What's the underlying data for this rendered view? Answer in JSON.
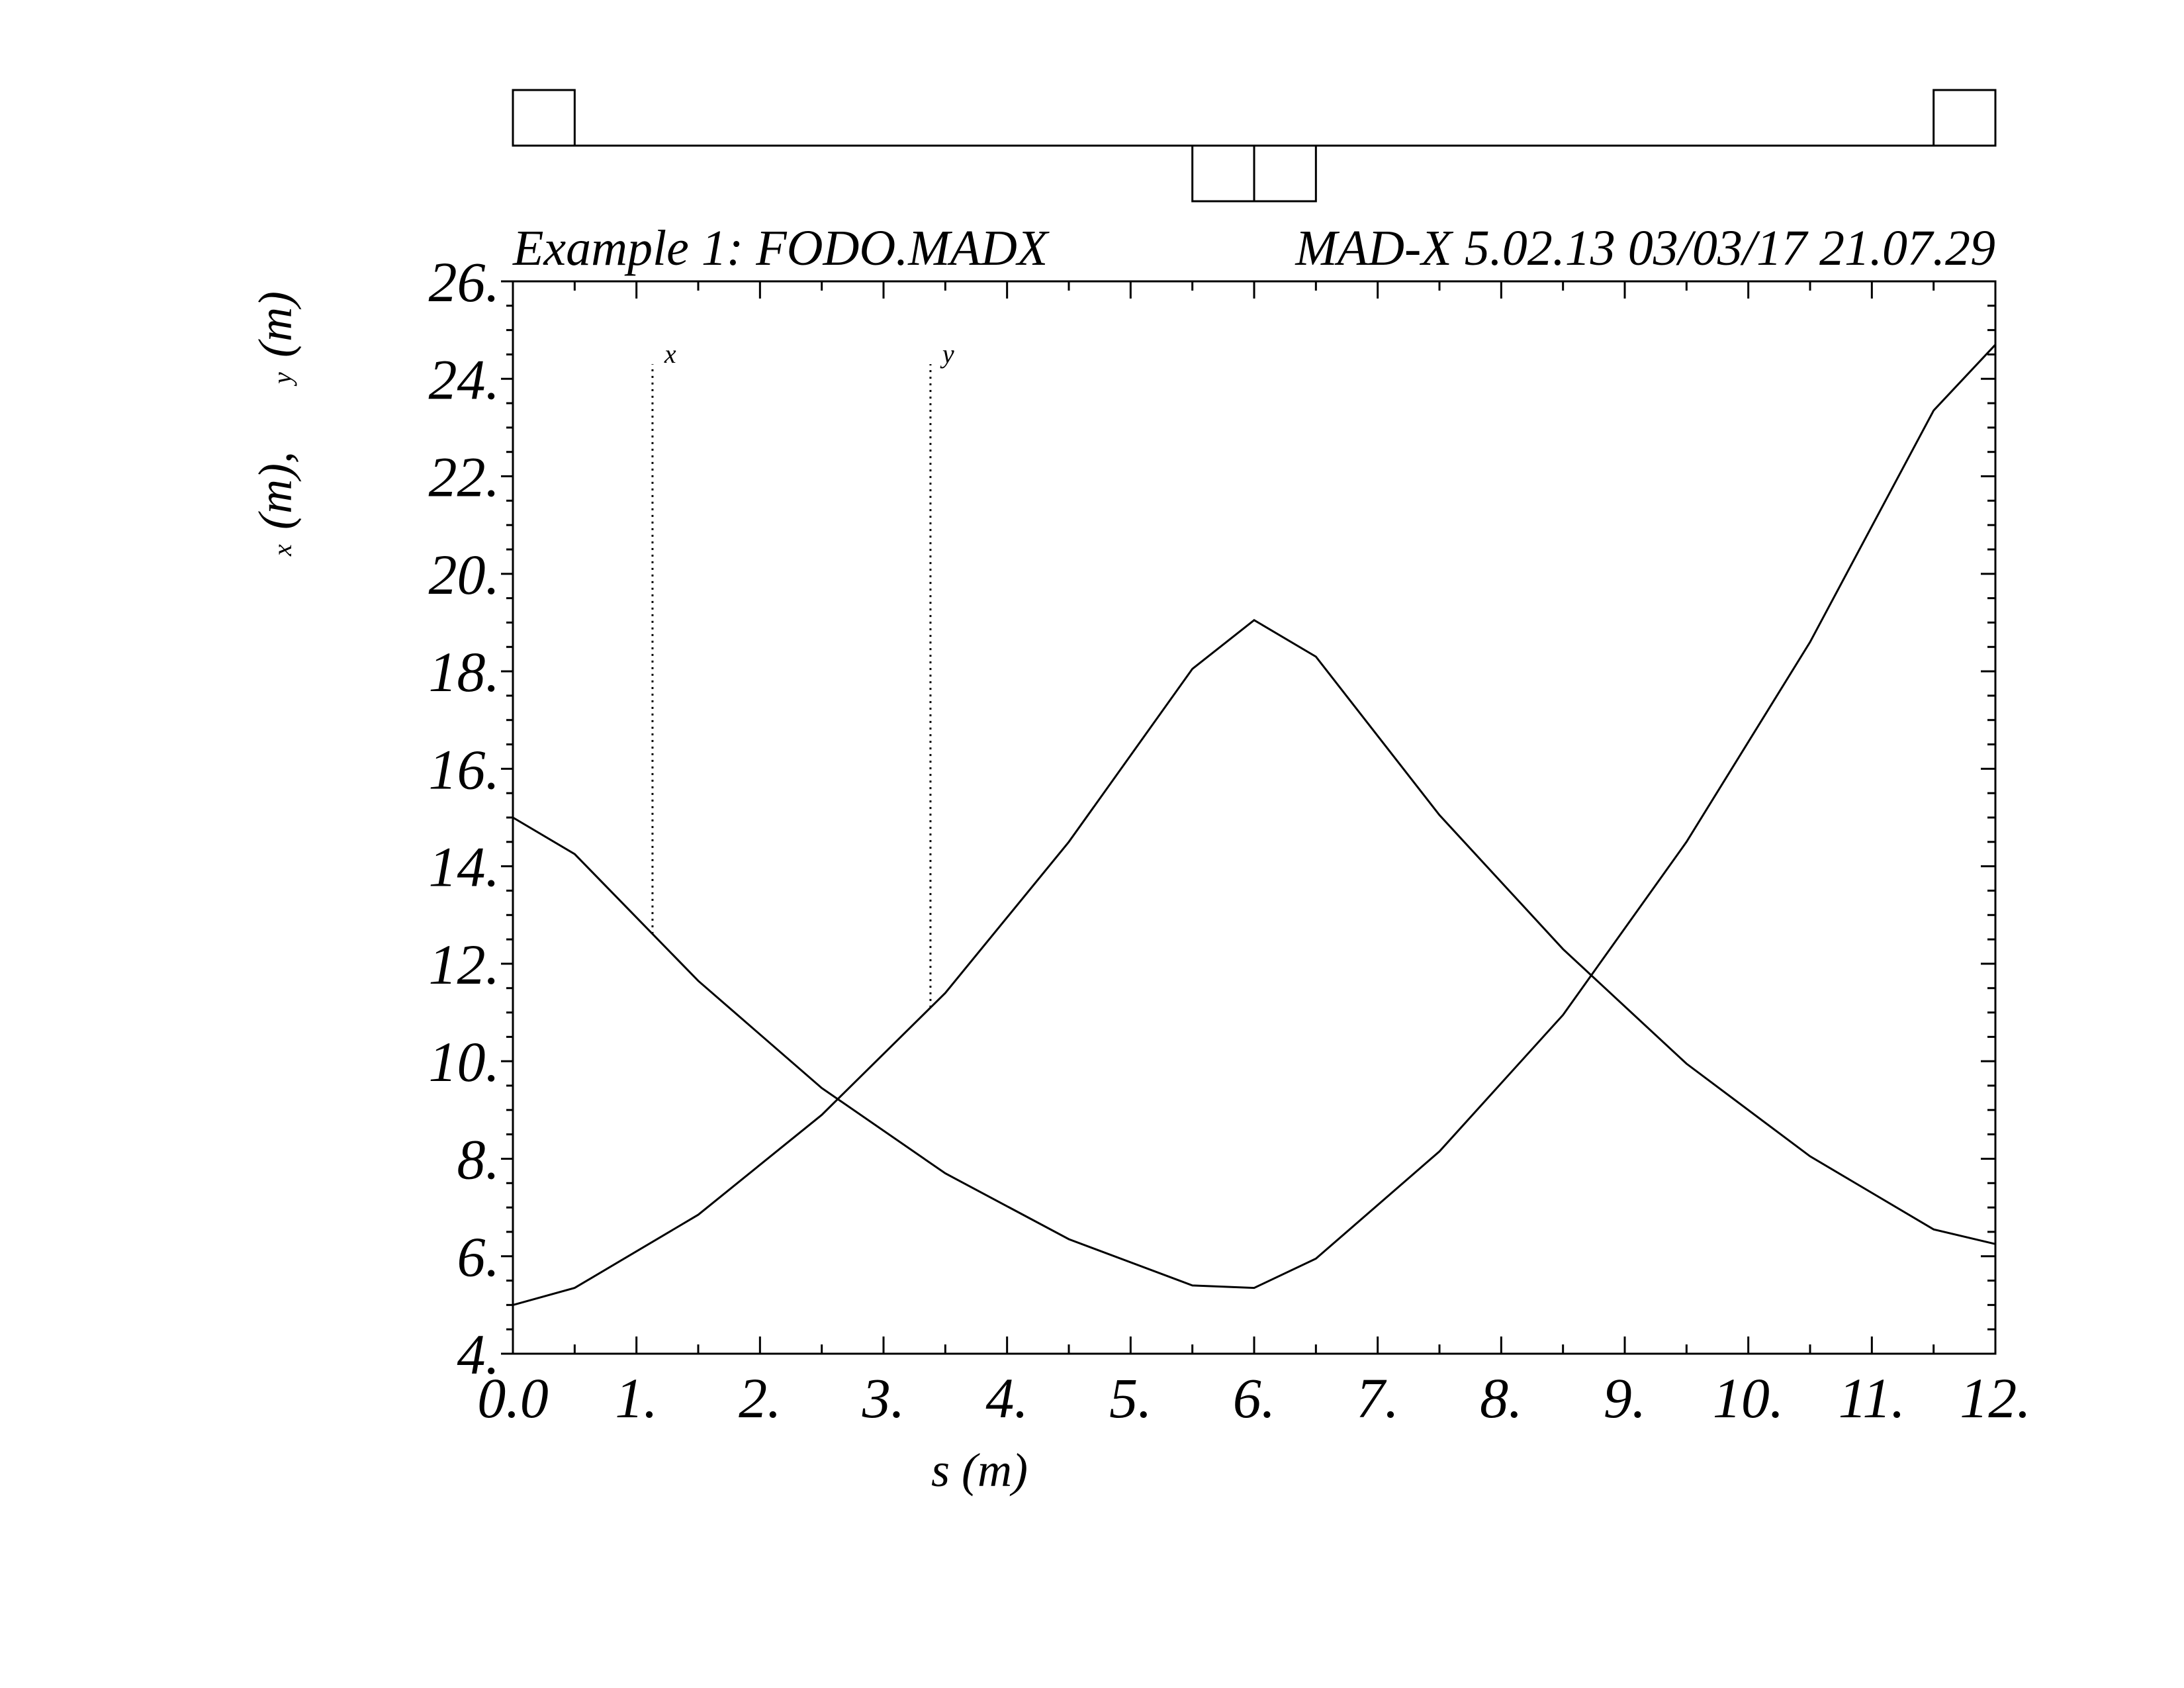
{
  "header": {
    "title": "Example 1: FODO.MADX",
    "program": "MAD-X 5.02.13  03/03/17 21.07.29"
  },
  "chart_data": {
    "type": "line",
    "title": "Example 1: FODO.MADX",
    "xlabel": "s (m)",
    "ylabel": "(m),",
    "ylabel2": "(m)",
    "ylabel_sub_x": "x",
    "ylabel_sub_y": "y",
    "xlim": [
      0,
      12
    ],
    "ylim": [
      4,
      26
    ],
    "xticks": [
      0,
      1,
      2,
      3,
      4,
      5,
      6,
      7,
      8,
      9,
      10,
      11,
      12
    ],
    "xtick_labels": [
      "0.0",
      "1.",
      "2.",
      "3.",
      "4.",
      "5.",
      "6.",
      "7.",
      "8.",
      "9.",
      "10.",
      "11.",
      "12."
    ],
    "yticks": [
      4,
      6,
      8,
      10,
      12,
      14,
      16,
      18,
      20,
      22,
      24,
      26
    ],
    "ytick_labels": [
      "4.",
      "6.",
      "8.",
      "10.",
      "12.",
      "14.",
      "16.",
      "18.",
      "20.",
      "22.",
      "24.",
      "26."
    ],
    "grid": false,
    "series": [
      {
        "name": "x",
        "marker_s": 1.13,
        "x": [
          0,
          0.5,
          1.5,
          2.5,
          3.5,
          4.5,
          5.5,
          6.0,
          6.5,
          7.5,
          8.5,
          9.5,
          10.5,
          11.5,
          12.0
        ],
        "values": [
          15.0,
          14.25,
          11.65,
          9.45,
          7.7,
          6.35,
          5.4,
          5.35,
          5.95,
          8.15,
          10.95,
          14.5,
          18.6,
          23.35,
          24.7
        ]
      },
      {
        "name": "y",
        "marker_s": 3.38,
        "x": [
          0,
          0.5,
          1.5,
          2.5,
          3.5,
          4.5,
          5.5,
          6.0,
          6.5,
          7.5,
          8.5,
          9.5,
          10.5,
          11.5,
          12.0
        ],
        "values": [
          5.0,
          5.35,
          6.85,
          8.9,
          11.4,
          14.5,
          18.05,
          19.05,
          18.3,
          15.05,
          12.3,
          9.95,
          8.05,
          6.55,
          6.25
        ]
      }
    ],
    "lattice": {
      "elements": [
        {
          "type": "quadrupole",
          "polarity": "focusing",
          "s_start": 0.0,
          "s_end": 0.5
        },
        {
          "type": "quadrupole",
          "polarity": "defocusing",
          "s_start": 5.5,
          "s_end": 6.0
        },
        {
          "type": "quadrupole",
          "polarity": "defocusing",
          "s_start": 6.0,
          "s_end": 6.5
        },
        {
          "type": "quadrupole",
          "polarity": "focusing",
          "s_start": 11.5,
          "s_end": 12.0
        }
      ]
    }
  }
}
